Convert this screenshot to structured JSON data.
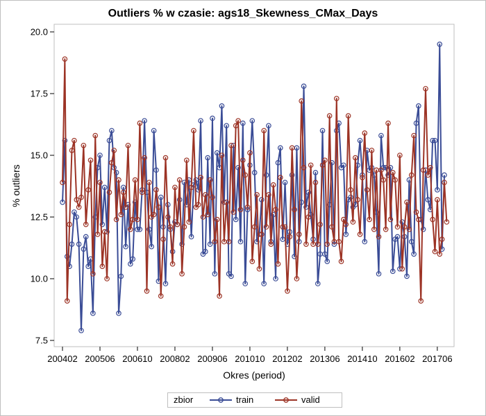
{
  "chart_data": {
    "type": "line",
    "title": "Outliers % w czasie: ags18_Skewness_CMax_Days",
    "xlabel": "Okres (period)",
    "ylabel": "% outliers",
    "ylim": [
      7.5,
      20.0
    ],
    "yticks": [
      "7.5",
      "10.0",
      "12.5",
      "15.0",
      "17.5",
      "20.0"
    ],
    "xticks": [
      "200402",
      "200506",
      "200610",
      "200802",
      "200906",
      "201010",
      "201202",
      "201306",
      "201410",
      "201602",
      "201706"
    ],
    "period_start": "200402",
    "legend_title": "zbior",
    "series": [
      {
        "name": "train",
        "color": "#3a4c96",
        "values": [
          13.1,
          15.6,
          10.9,
          10.5,
          11.4,
          12.7,
          12.5,
          11.4,
          7.9,
          11.2,
          11.7,
          10.5,
          10.8,
          8.6,
          12.5,
          14.5,
          15.0,
          12.2,
          13.7,
          11.9,
          15.6,
          16.0,
          14.5,
          14.3,
          8.6,
          10.1,
          13.7,
          11.3,
          13.0,
          10.6,
          10.8,
          13.1,
          12.0,
          12.0,
          13.6,
          16.4,
          13.5,
          12.0,
          11.3,
          16.0,
          14.4,
          9.9,
          13.3,
          12.1,
          9.8,
          13.0,
          12.0,
          11.1,
          12.3,
          12.2,
          13.2,
          11.4,
          13.9,
          13.0,
          14.0,
          11.7,
          13.8,
          14.0,
          13.6,
          16.4,
          11.0,
          11.1,
          14.9,
          11.4,
          16.5,
          10.2,
          15.1,
          14.5,
          17.0,
          13.1,
          16.2,
          10.2,
          10.1,
          15.4,
          12.4,
          14.5,
          11.5,
          16.3,
          9.8,
          12.8,
          14.6,
          16.4,
          14.3,
          11.5,
          11.8,
          13.2,
          9.8,
          14.2,
          16.2,
          11.5,
          12.6,
          10.0,
          14.7,
          15.3,
          11.6,
          13.9,
          11.4,
          11.9,
          14.2,
          10.9,
          15.3,
          11.5,
          13.1,
          17.8,
          12.9,
          13.5,
          12.6,
          11.6,
          14.3,
          9.8,
          11.0,
          16.0,
          11.0,
          10.7,
          13.0,
          14.7,
          11.4,
          16.0,
          16.3,
          14.5,
          14.6,
          11.8,
          13.2,
          13.3,
          12.9,
          13.0,
          14.6,
          15.6,
          14.2,
          11.5,
          15.2,
          14.4,
          14.5,
          14.2,
          12.7,
          10.2,
          15.8,
          14.5,
          14.5,
          14.2,
          14.5,
          10.3,
          11.6,
          11.7,
          10.4,
          12.3,
          11.7,
          10.1,
          14.0,
          11.5,
          11.0,
          16.3,
          17.0,
          12.4,
          12.0,
          14.4,
          13.2,
          12.8,
          15.6,
          15.6,
          13.6,
          19.5,
          11.2,
          14.2
        ]
      },
      {
        "name": "valid",
        "color": "#9c3325",
        "values": [
          13.9,
          18.9,
          9.1,
          12.2,
          15.2,
          15.6,
          13.2,
          12.9,
          13.3,
          15.4,
          12.2,
          13.6,
          14.8,
          10.2,
          15.8,
          11.8,
          13.9,
          10.5,
          11.9,
          10.0,
          13.5,
          14.7,
          15.2,
          12.4,
          14.0,
          12.6,
          13.5,
          12.9,
          15.4,
          12.0,
          12.4,
          14.0,
          12.4,
          16.3,
          13.5,
          14.9,
          9.5,
          13.9,
          12.5,
          12.6,
          13.6,
          12.9,
          9.3,
          11.6,
          14.9,
          12.5,
          12.1,
          10.6,
          13.7,
          12.2,
          14.0,
          10.2,
          12.1,
          14.8,
          12.3,
          13.7,
          16.0,
          12.9,
          13.0,
          14.1,
          12.5,
          13.4,
          12.6,
          14.0,
          13.3,
          11.5,
          12.4,
          9.3,
          15.0,
          11.5,
          13.1,
          11.5,
          15.4,
          12.7,
          16.2,
          16.4,
          12.8,
          14.8,
          14.2,
          12.9,
          15.1,
          10.7,
          12.1,
          13.4,
          10.4,
          11.8,
          16.0,
          12.1,
          13.4,
          11.4,
          13.8,
          12.8,
          10.6,
          14.1,
          12.1,
          12.1,
          9.5,
          11.7,
          15.3,
          12.8,
          10.0,
          11.8,
          17.2,
          14.5,
          11.4,
          12.5,
          14.6,
          11.4,
          13.9,
          11.4,
          12.2,
          14.6,
          14.8,
          11.4,
          16.6,
          12.1,
          11.5,
          17.3,
          11.5,
          10.7,
          12.4,
          12.2,
          16.6,
          13.6,
          12.3,
          14.9,
          13.2,
          11.8,
          14.1,
          15.9,
          13.6,
          12.4,
          15.2,
          12.0,
          14.4,
          11.7,
          14.4,
          14.0,
          12.0,
          16.3,
          12.4,
          14.3,
          14.0,
          12.1,
          15.0,
          10.4,
          12.1,
          13.1,
          12.0,
          14.2,
          15.8,
          12.7,
          12.4,
          9.1,
          14.4,
          17.7,
          14.2,
          14.5,
          12.4,
          11.1,
          13.2,
          11.0,
          11.6,
          13.9,
          12.3
        ]
      }
    ],
    "grid": false,
    "legend_position": "bottom"
  }
}
